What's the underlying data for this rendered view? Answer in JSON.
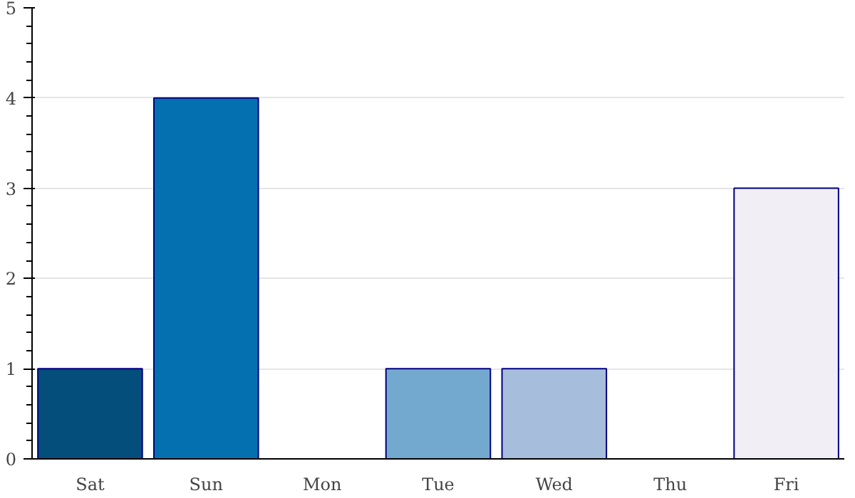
{
  "chart_data": {
    "type": "bar",
    "categories": [
      "Sat",
      "Sun",
      "Mon",
      "Tue",
      "Wed",
      "Thu",
      "Fri"
    ],
    "values": [
      1,
      4,
      0,
      1,
      1,
      0,
      3
    ],
    "colors": [
      "#034e7b",
      "#0570b0",
      "#3690c0",
      "#74a9cf",
      "#a6bddb",
      "#d0d1e6",
      "#f1eef6"
    ],
    "ylim": [
      0,
      5
    ],
    "yticks": [
      0,
      1,
      2,
      3,
      4,
      5
    ],
    "grid": "y"
  }
}
